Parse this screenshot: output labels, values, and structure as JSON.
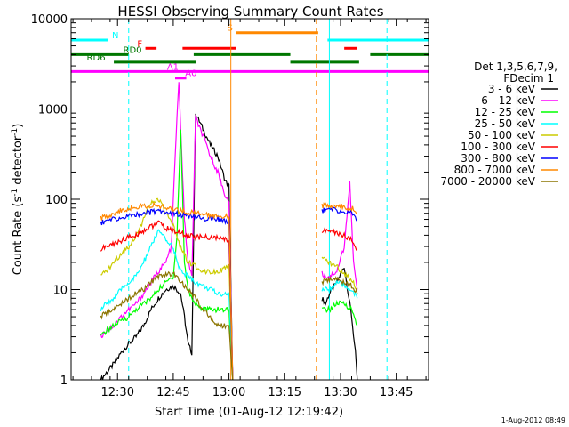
{
  "chart_data": {
    "type": "line",
    "title": "HESSI Observing Summary Count Rates",
    "xlabel": "Start Time (01-Aug-12 12:19:42)",
    "ylabel_main": "Count Rate (s",
    "ylabel_sup1": "-1",
    "ylabel_mid": " detector",
    "ylabel_sup2": "-1",
    "ylabel_end": ")",
    "y_scale": "log",
    "ylim": [
      1,
      10000
    ],
    "x_range_min": [
      0,
      230
    ],
    "x_ticks": [
      {
        "m": 11,
        "label": "12:30"
      },
      {
        "m": 26,
        "label": "12:45"
      },
      {
        "m": 41,
        "label": "13:00"
      },
      {
        "m": 56,
        "label": "13:15"
      },
      {
        "m": 71,
        "label": "13:30"
      },
      {
        "m": 86,
        "label": "13:45"
      }
    ],
    "y_ticks": [
      {
        "v": 1,
        "label": "1"
      },
      {
        "v": 10,
        "label": "10"
      },
      {
        "v": 100,
        "label": "100"
      },
      {
        "v": 1000,
        "label": "1000"
      },
      {
        "v": 10000,
        "label": "10000"
      }
    ],
    "legend": {
      "header1": "Det 1,3,5,6,7,9,",
      "header2": "FDecim 1",
      "entries": [
        {
          "label": "3 - 6 keV",
          "color": "#000000"
        },
        {
          "label": "6 - 12 keV",
          "color": "#ff00ff"
        },
        {
          "label": "12 - 25 keV",
          "color": "#00ff00"
        },
        {
          "label": "25 - 50 keV",
          "color": "#00ffff"
        },
        {
          "label": "50 - 100 keV",
          "color": "#cccc00"
        },
        {
          "label": "100 - 300 keV",
          "color": "#ff0000"
        },
        {
          "label": "300 - 800 keV",
          "color": "#0000ff"
        },
        {
          "label": "800 - 7000 keV",
          "color": "#ff8800"
        },
        {
          "label": "7000 - 20000 keV",
          "color": "#8b7500"
        }
      ]
    },
    "flags": [
      {
        "label": "N",
        "color": "#00ffff",
        "level": 5800,
        "segments": [
          [
            -3,
            8.5
          ],
          [
            67.5,
            96
          ]
        ],
        "label_m": 9.5
      },
      {
        "label": "S",
        "color": "#ff8800",
        "level": 7000,
        "segments": [
          [
            43,
            65
          ]
        ],
        "label_m": 40.5
      },
      {
        "label": "F",
        "color": "#ff0000",
        "level": 4700,
        "segments": [
          [
            18.5,
            21.5
          ],
          [
            28.5,
            43
          ],
          [
            72,
            75.5
          ]
        ],
        "label_m": 16.3
      },
      {
        "label": "RD0",
        "color": "#007700",
        "level": 4000,
        "segments": [
          [
            -3,
            14
          ],
          [
            31.5,
            57.5
          ],
          [
            79,
            96
          ]
        ],
        "label_m": 12.5
      },
      {
        "label": "RD6",
        "color": "#007700",
        "level": 3300,
        "segments": [
          [
            10,
            32
          ],
          [
            57.5,
            76
          ]
        ],
        "label_m": 2.7
      },
      {
        "label": "A1",
        "color": "#ff00ff",
        "level": 2600,
        "segments": [
          [
            -3,
            96
          ]
        ],
        "label_m": 24.3
      },
      {
        "label": "A0",
        "color": "#ff00ff",
        "level": 2200,
        "segments": [
          [
            26.5,
            29.5
          ]
        ],
        "label_m": 29.2
      }
    ],
    "cyan_lines": [
      {
        "m": -1.5,
        "style": "solid"
      },
      {
        "m": 14,
        "style": "dashed"
      },
      {
        "m": 68,
        "style": "solid"
      },
      {
        "m": 83.5,
        "style": "dashed"
      }
    ],
    "orange_lines": [
      {
        "m": 41.5,
        "style": "solid"
      },
      {
        "m": 64.5,
        "style": "dashed"
      }
    ],
    "segments": [
      [
        6.5,
        42
      ],
      [
        66,
        75.5
      ]
    ],
    "series": [
      {
        "name": "3 - 6 keV",
        "color": "#000000",
        "x": [
          6.5,
          8,
          10,
          12,
          14,
          16,
          18,
          20,
          22,
          24,
          26,
          28,
          29,
          30,
          31,
          32,
          34,
          36,
          38,
          40,
          41,
          42,
          66,
          67,
          68,
          70,
          72,
          74,
          75,
          75.5
        ],
        "y": [
          1,
          1.2,
          1.5,
          2,
          2.5,
          3,
          4,
          6,
          8,
          10,
          11,
          9,
          5,
          2.5,
          2,
          900,
          600,
          400,
          300,
          160,
          140,
          1,
          8,
          7,
          9,
          12,
          18,
          5,
          2,
          1
        ]
      },
      {
        "name": "6 - 12 keV",
        "color": "#ff00ff",
        "x": [
          6.5,
          8,
          10,
          12,
          14,
          16,
          18,
          20,
          22,
          24,
          25.5,
          26.5,
          27.5,
          29,
          30,
          31,
          32,
          34,
          36,
          38,
          40,
          41,
          42,
          66,
          67,
          68,
          70,
          72,
          73.5,
          74.5,
          75.5
        ],
        "y": [
          3,
          3.5,
          4,
          5,
          6,
          7,
          9,
          12,
          16,
          20,
          30,
          300,
          2000,
          60,
          20,
          14,
          800,
          500,
          300,
          200,
          110,
          90,
          1,
          15,
          14,
          14,
          16,
          30,
          150,
          20,
          10
        ]
      },
      {
        "name": "12 - 25 keV",
        "color": "#00ff00",
        "x": [
          6.5,
          8,
          10,
          12,
          14,
          16,
          18,
          20,
          22,
          24,
          26,
          27,
          28,
          29,
          30,
          31,
          32,
          34,
          36,
          38,
          40,
          41,
          42,
          66,
          68,
          70,
          72,
          74,
          75.5
        ],
        "y": [
          3,
          3.5,
          4,
          4.5,
          5,
          6,
          7,
          8,
          10,
          12,
          14,
          40,
          600,
          20,
          10,
          8,
          7,
          6,
          6,
          6,
          6,
          6,
          1,
          6,
          6,
          7,
          7,
          6,
          4
        ]
      },
      {
        "name": "25 - 50 keV",
        "color": "#00ffff",
        "x": [
          6.5,
          8,
          10,
          12,
          14,
          16,
          18,
          20,
          22,
          24,
          26,
          27,
          28,
          30,
          32,
          34,
          36,
          38,
          40,
          41,
          42,
          66,
          68,
          70,
          72,
          74,
          75.5
        ],
        "y": [
          6,
          7,
          8,
          10,
          12,
          14,
          20,
          30,
          45,
          35,
          30,
          20,
          16,
          14,
          12,
          11,
          10,
          9,
          9,
          9,
          1,
          10,
          10,
          12,
          11,
          10,
          8
        ]
      },
      {
        "name": "50 - 100 keV",
        "color": "#cccc00",
        "x": [
          6.5,
          8,
          10,
          12,
          14,
          16,
          18,
          20,
          22,
          24,
          26,
          28,
          30,
          32,
          34,
          36,
          38,
          40,
          41,
          42,
          66,
          68,
          70,
          72,
          74,
          75.5
        ],
        "y": [
          14,
          16,
          20,
          25,
          30,
          40,
          60,
          90,
          100,
          70,
          50,
          30,
          20,
          18,
          16,
          16,
          16,
          17,
          18,
          1,
          22,
          20,
          18,
          15,
          13,
          10
        ]
      },
      {
        "name": "100 - 300 keV",
        "color": "#ff0000",
        "x": [
          6.5,
          8,
          10,
          12,
          14,
          16,
          18,
          20,
          22,
          24,
          26,
          28,
          30,
          32,
          34,
          36,
          38,
          40,
          41,
          42,
          66,
          68,
          70,
          72,
          74,
          75.5
        ],
        "y": [
          28,
          30,
          32,
          35,
          38,
          40,
          45,
          50,
          55,
          48,
          45,
          42,
          40,
          38,
          38,
          38,
          37,
          36,
          35,
          1,
          45,
          45,
          42,
          40,
          35,
          28
        ]
      },
      {
        "name": "300 - 800 keV",
        "color": "#0000ff",
        "x": [
          6.5,
          8,
          10,
          12,
          14,
          16,
          18,
          20,
          22,
          24,
          26,
          28,
          30,
          32,
          34,
          36,
          38,
          40,
          41,
          42,
          66,
          68,
          70,
          72,
          74,
          75.5
        ],
        "y": [
          55,
          58,
          60,
          62,
          65,
          68,
          70,
          72,
          75,
          73,
          70,
          67,
          65,
          63,
          62,
          61,
          60,
          58,
          56,
          1,
          75,
          78,
          75,
          72,
          70,
          60
        ]
      },
      {
        "name": "800 - 7000 keV",
        "color": "#ff8800",
        "x": [
          6.5,
          8,
          10,
          12,
          14,
          16,
          18,
          20,
          22,
          24,
          26,
          28,
          30,
          32,
          34,
          36,
          38,
          40,
          41,
          42,
          66,
          68,
          70,
          72,
          74,
          75.5
        ],
        "y": [
          62,
          65,
          70,
          75,
          80,
          82,
          85,
          85,
          84,
          80,
          78,
          75,
          72,
          70,
          68,
          67,
          66,
          65,
          64,
          1,
          85,
          86,
          85,
          82,
          80,
          70
        ]
      },
      {
        "name": "7000 - 20000 keV",
        "color": "#8b7500",
        "x": [
          6.5,
          8,
          10,
          12,
          14,
          16,
          18,
          20,
          22,
          24,
          26,
          28,
          30,
          32,
          34,
          36,
          38,
          40,
          41,
          42,
          66,
          68,
          70,
          72,
          74,
          75.5
        ],
        "y": [
          5,
          5.5,
          6,
          7,
          8,
          9,
          10,
          12,
          14,
          15,
          15,
          12,
          10,
          8,
          6,
          5,
          4,
          4,
          4,
          1,
          12,
          13,
          13,
          12,
          11,
          9
        ]
      }
    ]
  },
  "footer_timestamp": "1-Aug-2012 08:49"
}
